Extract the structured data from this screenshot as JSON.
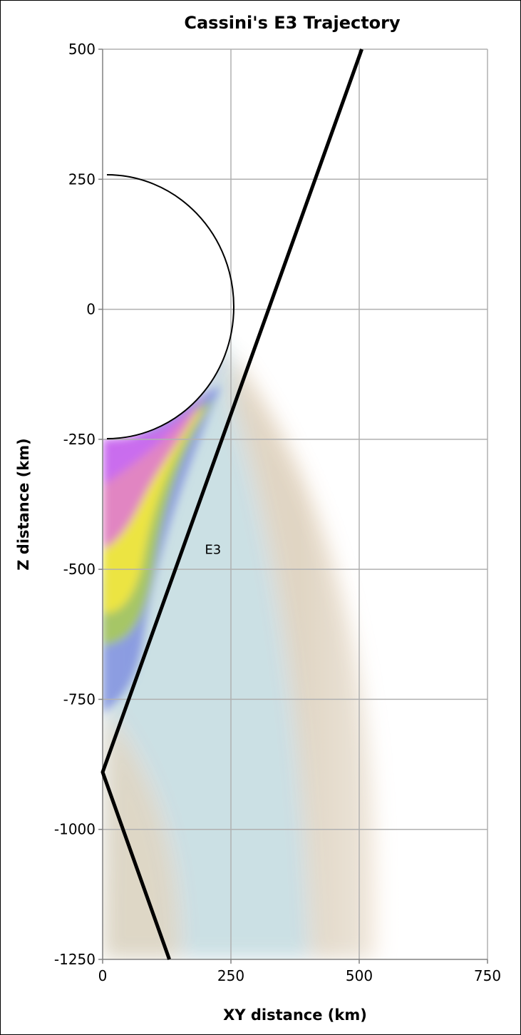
{
  "chart_data": {
    "type": "line",
    "title": "Cassini's E3 Trajectory",
    "xlabel": "XY distance (km)",
    "ylabel": "Z distance (km)",
    "xlim": [
      0,
      750
    ],
    "ylim": [
      -1250,
      500
    ],
    "x_ticks": [
      "0",
      "250",
      "500",
      "750"
    ],
    "y_ticks": [
      "500",
      "250",
      "0",
      "-250",
      "-500",
      "-750",
      "-1000",
      "-1250"
    ],
    "grid": true,
    "series": [
      {
        "name": "E3",
        "x": [
          505,
          0,
          130
        ],
        "y": [
          500,
          -890,
          -1250
        ]
      }
    ],
    "annotations": [
      {
        "text": "E3",
        "x": 215,
        "y": -470
      }
    ],
    "colors": {
      "trajectory": "#000000",
      "plume_purple": "#c86bf0",
      "plume_magenta": "#e07ad0",
      "plume_yellow": "#f0e640",
      "plume_green": "#a8c860",
      "plume_blue": "#8090e0",
      "plume_teal": "#5a9aa8",
      "plume_orange": "#f0c8a0"
    }
  }
}
